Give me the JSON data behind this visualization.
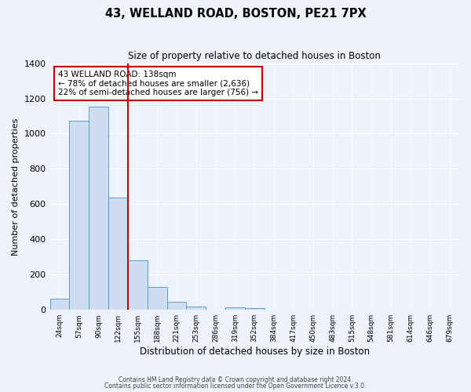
{
  "title": "43, WELLAND ROAD, BOSTON, PE21 7PX",
  "subtitle": "Size of property relative to detached houses in Boston",
  "xlabel": "Distribution of detached houses by size in Boston",
  "ylabel": "Number of detached properties",
  "bar_labels": [
    "24sqm",
    "57sqm",
    "90sqm",
    "122sqm",
    "155sqm",
    "188sqm",
    "221sqm",
    "253sqm",
    "286sqm",
    "319sqm",
    "352sqm",
    "384sqm",
    "417sqm",
    "450sqm",
    "483sqm",
    "515sqm",
    "548sqm",
    "581sqm",
    "614sqm",
    "646sqm",
    "679sqm"
  ],
  "bar_values": [
    65,
    1075,
    1155,
    635,
    280,
    130,
    45,
    20,
    0,
    15,
    10,
    0,
    0,
    0,
    0,
    0,
    0,
    0,
    0,
    0,
    0
  ],
  "bar_color": "#cfddf0",
  "bar_edge_color": "#5b9bd5",
  "ylim": [
    0,
    1400
  ],
  "yticks": [
    0,
    200,
    400,
    600,
    800,
    1000,
    1200,
    1400
  ],
  "property_line_x": 4.0,
  "property_line_color": "#c00000",
  "annotation_title": "43 WELLAND ROAD: 138sqm",
  "annotation_line1": "← 78% of detached houses are smaller (2,636)",
  "annotation_line2": "22% of semi-detached houses are larger (756) →",
  "annotation_box_color": "#c00000",
  "footer1": "Contains HM Land Registry data © Crown copyright and database right 2024.",
  "footer2": "Contains public sector information licensed under the Open Government Licence v.3.0.",
  "bg_color": "#eef2fa",
  "grid_color": "#d8dce8",
  "plot_bg_color": "#eef2fa"
}
